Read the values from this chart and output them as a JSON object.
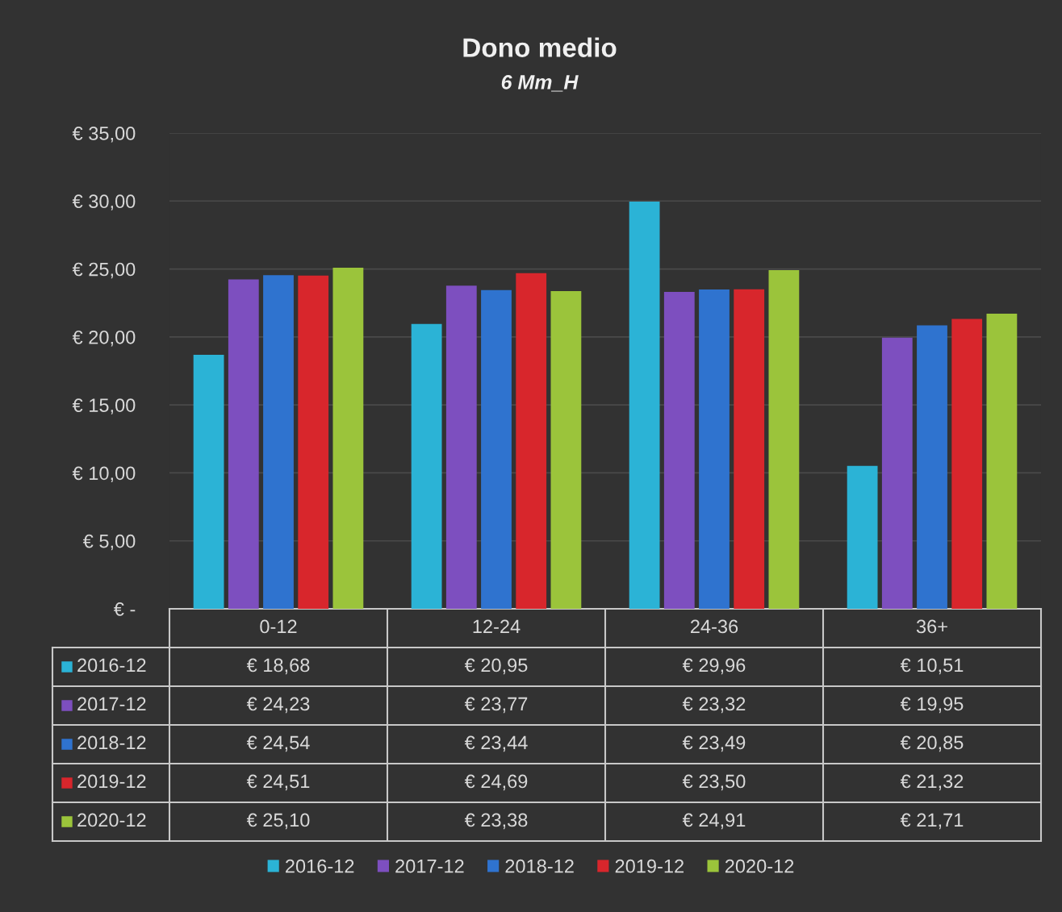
{
  "chart_data": {
    "type": "bar",
    "title": "Dono medio",
    "subtitle": "6 Mm_H",
    "categories": [
      "0-12",
      "12-24",
      "24-36",
      "36+"
    ],
    "series": [
      {
        "name": "2016-12",
        "color": "#2bb3d6",
        "values": [
          18.68,
          20.95,
          29.96,
          10.51
        ],
        "value_labels": [
          "€ 18,68",
          "€ 20,95",
          "€ 29,96",
          "€ 10,51"
        ]
      },
      {
        "name": "2017-12",
        "color": "#7d4fbf",
        "values": [
          24.23,
          23.77,
          23.32,
          19.95
        ],
        "value_labels": [
          "€ 24,23",
          "€ 23,77",
          "€ 23,32",
          "€ 19,95"
        ]
      },
      {
        "name": "2018-12",
        "color": "#2f73cf",
        "values": [
          24.54,
          23.44,
          23.49,
          20.85
        ],
        "value_labels": [
          "€ 24,54",
          "€ 23,44",
          "€ 23,49",
          "€ 20,85"
        ]
      },
      {
        "name": "2019-12",
        "color": "#d8262c",
        "values": [
          24.51,
          24.69,
          23.5,
          21.32
        ],
        "value_labels": [
          "€ 24,51",
          "€ 24,69",
          "€ 23,50",
          "€ 21,32"
        ]
      },
      {
        "name": "2020-12",
        "color": "#9bc43b",
        "values": [
          25.1,
          23.38,
          24.91,
          21.71
        ],
        "value_labels": [
          "€ 25,10",
          "€ 23,38",
          "€ 24,91",
          "€ 21,71"
        ]
      }
    ],
    "ylim": [
      0,
      35
    ],
    "yticks": [
      {
        "value": 0,
        "label": "€ -"
      },
      {
        "value": 5,
        "label": "€ 5,00"
      },
      {
        "value": 10,
        "label": "€ 10,00"
      },
      {
        "value": 15,
        "label": "€ 15,00"
      },
      {
        "value": 20,
        "label": "€ 20,00"
      },
      {
        "value": 25,
        "label": "€ 25,00"
      },
      {
        "value": 30,
        "label": "€ 30,00"
      },
      {
        "value": 35,
        "label": "€ 35,00"
      }
    ],
    "grid": "y",
    "legend": "bottom"
  }
}
